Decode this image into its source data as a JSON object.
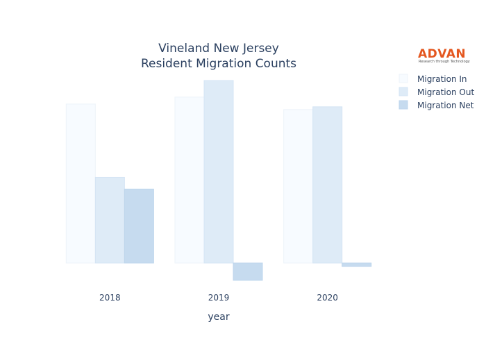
{
  "logo": {
    "name": "ADVAN",
    "tagline": "Research through Technology",
    "color": "#e4571f"
  },
  "chart_data": {
    "type": "bar",
    "title_lines": [
      "Vineland New Jersey",
      "Resident Migration Counts"
    ],
    "xlabel": "year",
    "ylabel": "",
    "categories": [
      "2018",
      "2019",
      "2020"
    ],
    "series": [
      {
        "name": "Migration In",
        "values": [
          2300,
          2400,
          2220
        ],
        "color": "#f7fbff",
        "stroke": "#edf3fa"
      },
      {
        "name": "Migration Out",
        "values": [
          1240,
          2640,
          2260
        ],
        "color": "#deebf7",
        "stroke": "#d4e4f4"
      },
      {
        "name": "Migration Net",
        "values": [
          1070,
          -250,
          -50
        ],
        "color": "#c6dbef",
        "stroke": "#bdd5ec"
      }
    ],
    "ylim": [
      -400,
      2800
    ],
    "grid": false,
    "legend": "top-right"
  }
}
